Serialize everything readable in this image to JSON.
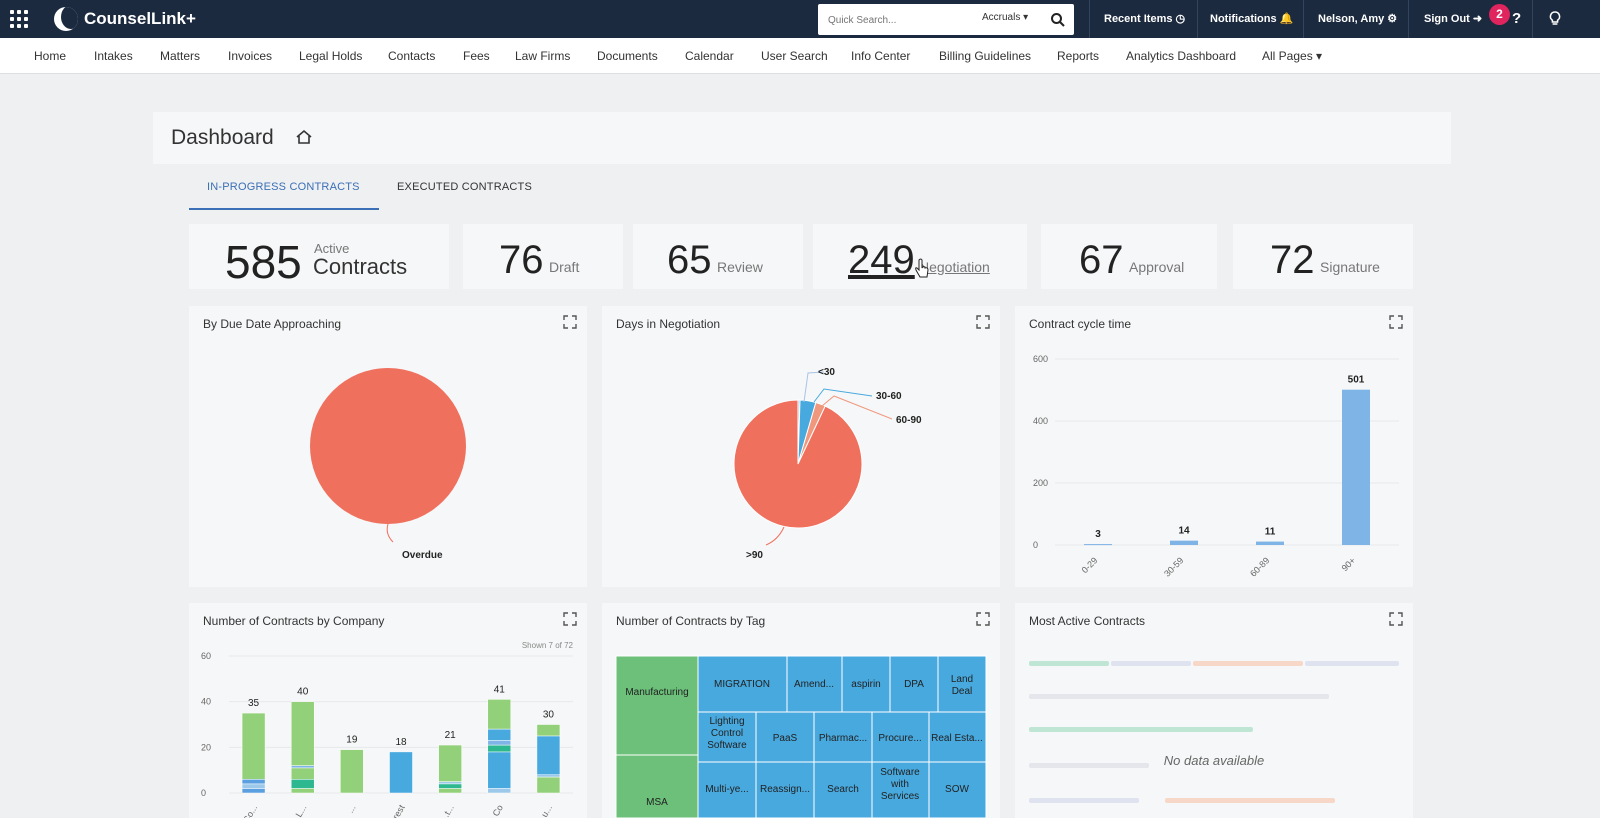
{
  "app": {
    "name": "CounselLink+"
  },
  "header": {
    "search_placeholder": "Quick Search...",
    "search_scope": "Accruals",
    "recent_items": "Recent Items",
    "notifications": "Notifications",
    "user": "Nelson, Amy",
    "sign_out": "Sign Out",
    "badge_count": "2"
  },
  "nav": [
    "Home",
    "Intakes",
    "Matters",
    "Invoices",
    "Legal Holds",
    "Contacts",
    "Fees",
    "Law Firms",
    "Documents",
    "Calendar",
    "User Search",
    "Info Center",
    "Billing Guidelines",
    "Reports",
    "Analytics Dashboard",
    "All Pages"
  ],
  "page": {
    "title": "Dashboard"
  },
  "tabs": [
    "IN-PROGRESS CONTRACTS",
    "EXECUTED CONTRACTS"
  ],
  "stats": [
    {
      "value": "585",
      "label_top": "Active",
      "label": "Contracts"
    },
    {
      "value": "76",
      "label": "Draft"
    },
    {
      "value": "65",
      "label": "Review"
    },
    {
      "value": "249",
      "label": "Negotiation"
    },
    {
      "value": "67",
      "label": "Approval"
    },
    {
      "value": "72",
      "label": "Signature"
    }
  ],
  "panels": {
    "due_date": "By Due Date Approaching",
    "negotiation": "Days in Negotiation",
    "cycle": "Contract cycle time",
    "company": "Number of Contracts by Company",
    "company_shown": "Shown 7 of 72",
    "tag": "Number of Contracts by Tag",
    "active": "Most Active Contracts",
    "active_empty": "No data available"
  },
  "chart_data": [
    {
      "type": "pie",
      "title": "By Due Date Approaching",
      "slices": [
        {
          "label": "Overdue",
          "value": 100,
          "color": "#f0705e"
        }
      ]
    },
    {
      "type": "pie",
      "title": "Days in Negotiation",
      "slices": [
        {
          "label": "<30",
          "value": 0.5,
          "color": "#a8c4e6"
        },
        {
          "label": "30-60",
          "value": 4,
          "color": "#48a9df"
        },
        {
          "label": "60-90",
          "value": 2.5,
          "color": "#f0987e"
        },
        {
          "label": ">90",
          "value": 93,
          "color": "#f0705e"
        }
      ]
    },
    {
      "type": "bar",
      "title": "Contract cycle time",
      "categories": [
        "0-29",
        "30-59",
        "60-89",
        "90+"
      ],
      "values": [
        3,
        14,
        11,
        501
      ],
      "ylim": [
        0,
        600
      ],
      "yticks": [
        0,
        200,
        400,
        600
      ],
      "color": "#7fb4e6"
    },
    {
      "type": "bar",
      "title": "Number of Contracts by Company",
      "categories": [
        "Co...",
        "L...",
        "...",
        "rest",
        "...t...",
        "...a Co",
        "...u..."
      ],
      "totals": [
        35,
        40,
        19,
        18,
        21,
        41,
        30
      ],
      "ylim": [
        0,
        60
      ],
      "yticks": [
        0,
        20,
        40,
        60
      ],
      "stacks": [
        [
          {
            "v": 2,
            "c": "#5a9fe0"
          },
          {
            "v": 2,
            "c": "#9cc9ea"
          },
          {
            "v": 2,
            "c": "#5a9fe0"
          },
          {
            "v": 29,
            "c": "#93d07a"
          }
        ],
        [
          {
            "v": 2,
            "c": "#93d07a"
          },
          {
            "v": 4,
            "c": "#2db890"
          },
          {
            "v": 5,
            "c": "#93d07a"
          },
          {
            "v": 1,
            "c": "#7fb4e6"
          },
          {
            "v": 28,
            "c": "#93d07a"
          }
        ],
        [
          {
            "v": 19,
            "c": "#93d07a"
          }
        ],
        [
          {
            "v": 18,
            "c": "#48a9df"
          }
        ],
        [
          {
            "v": 2,
            "c": "#93d07a"
          },
          {
            "v": 2,
            "c": "#2db890"
          },
          {
            "v": 1,
            "c": "#9cc9ea"
          },
          {
            "v": 16,
            "c": "#93d07a"
          }
        ],
        [
          {
            "v": 2,
            "c": "#9cc9ea"
          },
          {
            "v": 16,
            "c": "#48a9df"
          },
          {
            "v": 3,
            "c": "#2db890"
          },
          {
            "v": 2,
            "c": "#7fb4e6"
          },
          {
            "v": 5,
            "c": "#48a9df"
          },
          {
            "v": 13,
            "c": "#93d07a"
          }
        ],
        [
          {
            "v": 7,
            "c": "#93d07a"
          },
          {
            "v": 1,
            "c": "#9cc9ea"
          },
          {
            "v": 17,
            "c": "#48a9df"
          },
          {
            "v": 5,
            "c": "#93d07a"
          }
        ]
      ]
    },
    {
      "type": "treemap",
      "title": "Number of Contracts by Tag",
      "items": [
        "Manufacturing",
        "MSA",
        "MIGRATION",
        "Amend...",
        "aspirin",
        "DPA",
        "Land Deal",
        "Lighting Control Software",
        "PaaS",
        "Pharmac...",
        "Procure...",
        "Real Esta...",
        "Multi-ye...",
        "Reassign...",
        "Search",
        "Software with Services",
        "SOW"
      ]
    }
  ]
}
